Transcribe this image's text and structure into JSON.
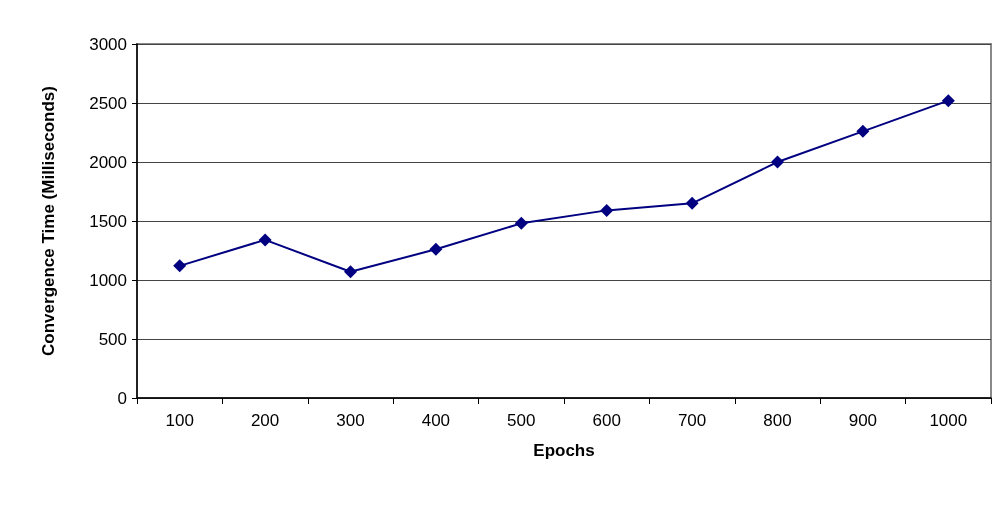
{
  "chart_data": {
    "type": "line",
    "xlabel": "Epochs",
    "ylabel": "Convergence Time (Milliseconds)",
    "categories": [
      "100",
      "200",
      "300",
      "400",
      "500",
      "600",
      "700",
      "800",
      "900",
      "1000"
    ],
    "series": [
      {
        "color": "#000080",
        "values": [
          1120,
          1340,
          1070,
          1260,
          1480,
          1590,
          1650,
          2000,
          2260,
          2520
        ]
      }
    ],
    "ylim": [
      0,
      3000
    ],
    "yticks": [
      0,
      500,
      1000,
      1500,
      2000,
      2500,
      3000
    ],
    "grid": "y",
    "marker": "diamond",
    "line_style": "solid"
  }
}
